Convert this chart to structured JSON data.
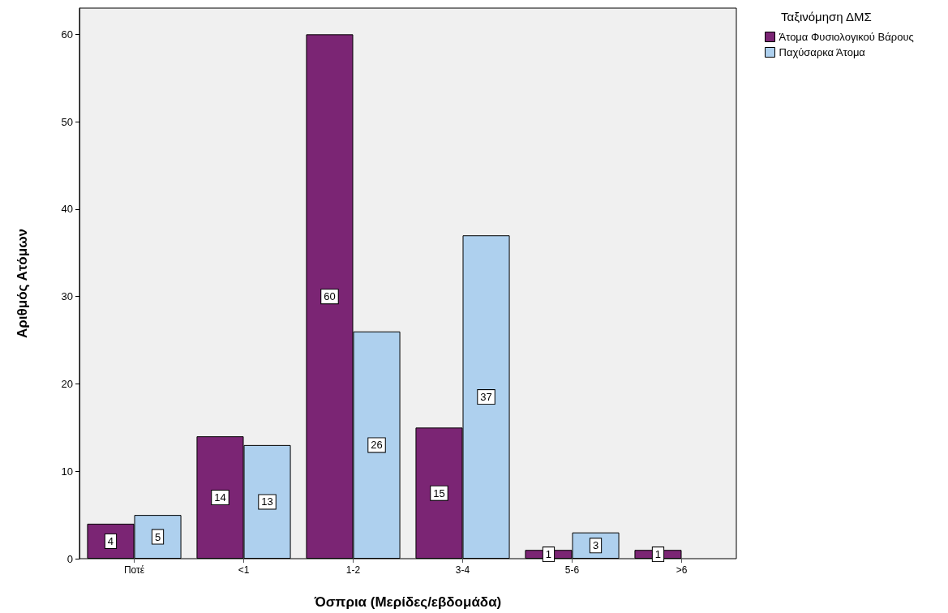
{
  "chart_data": {
    "type": "bar",
    "xlabel": "Όσπρια (Μερίδες/εβδομάδα)",
    "ylabel": "Αριθμός Ατόμων",
    "legend_title": "Ταξινόμηση ΔΜΣ",
    "categories": [
      "Ποτέ",
      "<1",
      "1-2",
      "3-4",
      "5-6",
      ">6"
    ],
    "series": [
      {
        "name": "Άτομα Φυσιολογικού Βάρους",
        "color": "#7b2574",
        "values": [
          4,
          14,
          60,
          15,
          1,
          1
        ]
      },
      {
        "name": "Παχύσαρκα Άτομα",
        "color": "#aed0ee",
        "values": [
          5,
          13,
          26,
          37,
          3,
          null
        ]
      }
    ],
    "ylim": [
      0,
      63
    ],
    "yticks": [
      0,
      10,
      20,
      30,
      40,
      50,
      60
    ],
    "grid": false,
    "legend": "top right",
    "data_labels": true
  }
}
